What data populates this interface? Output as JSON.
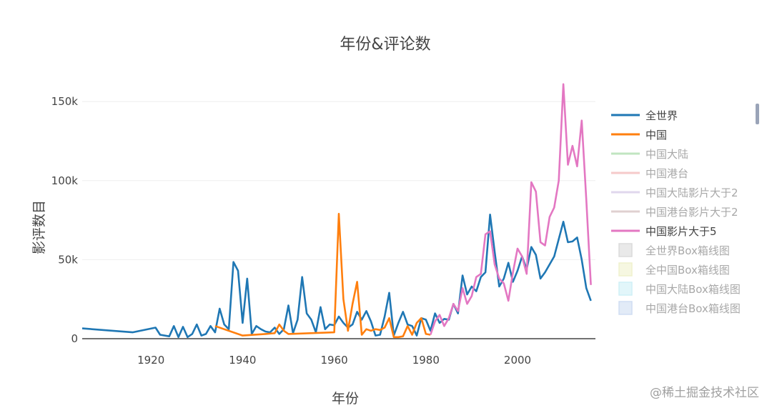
{
  "chart_data": {
    "type": "line",
    "title": "年份&评论数",
    "xlabel": "年份",
    "ylabel": "影评数目",
    "xlim": [
      1905,
      2017
    ],
    "ylim": [
      0,
      160000
    ],
    "x_ticks": [
      1920,
      1940,
      1960,
      1980,
      2000
    ],
    "x_tick_labels": [
      "1920",
      "1940",
      "1960",
      "1980",
      "2000"
    ],
    "y_ticks": [
      0,
      50000,
      100000,
      150000
    ],
    "y_tick_labels": [
      "0",
      "50k",
      "100k",
      "150k"
    ],
    "grid": true,
    "legend_position": "right",
    "series": [
      {
        "name": "全世界",
        "color": "#1f77b4",
        "x": [
          1905,
          1916,
          1921,
          1922,
          1924,
          1925,
          1926,
          1927,
          1928,
          1929,
          1930,
          1931,
          1932,
          1933,
          1934,
          1935,
          1936,
          1937,
          1938,
          1939,
          1940,
          1941,
          1942,
          1943,
          1944,
          1945,
          1946,
          1947,
          1948,
          1949,
          1950,
          1951,
          1952,
          1953,
          1954,
          1955,
          1956,
          1957,
          1958,
          1959,
          1960,
          1961,
          1962,
          1963,
          1964,
          1965,
          1966,
          1967,
          1968,
          1969,
          1970,
          1971,
          1972,
          1973,
          1974,
          1975,
          1976,
          1977,
          1978,
          1979,
          1980,
          1981,
          1982,
          1983,
          1984,
          1985,
          1986,
          1987,
          1988,
          1989,
          1990,
          1991,
          1992,
          1993,
          1994,
          1995,
          1996,
          1997,
          1998,
          1999,
          2000,
          2001,
          2002,
          2003,
          2004,
          2005,
          2006,
          2007,
          2008,
          2009,
          2010,
          2011,
          2012,
          2013,
          2014,
          2015,
          2016
        ],
        "values": [
          6500,
          4000,
          7000,
          2500,
          1500,
          8000,
          1000,
          7500,
          1000,
          3000,
          9000,
          2000,
          3000,
          8000,
          4000,
          19000,
          9000,
          6000,
          48500,
          43000,
          10000,
          38000,
          3000,
          8000,
          6000,
          4500,
          4000,
          7000,
          3000,
          6000,
          21000,
          3500,
          12000,
          39000,
          16000,
          12000,
          4000,
          20000,
          6000,
          9000,
          8500,
          14000,
          10000,
          7000,
          9000,
          17000,
          12000,
          17500,
          11000,
          2000,
          2500,
          14000,
          29000,
          2000,
          10000,
          17000,
          9000,
          8000,
          2000,
          13000,
          12000,
          5000,
          16000,
          10000,
          12500,
          12000,
          22000,
          16000,
          40000,
          28000,
          33000,
          30000,
          39000,
          42000,
          78500,
          55000,
          33000,
          38000,
          48000,
          36000,
          43000,
          52000,
          44000,
          58000,
          53000,
          38000,
          42000,
          47000,
          52000,
          63000,
          74000,
          61000,
          61500,
          64000,
          50000,
          32000,
          24000
        ]
      },
      {
        "name": "中国",
        "color": "#ff7f0e",
        "x": [
          1934,
          1940,
          1945,
          1947,
          1948,
          1949,
          1950,
          1960,
          1961,
          1962,
          1963,
          1964,
          1965,
          1966,
          1967,
          1968,
          1969,
          1970,
          1971,
          1972,
          1973,
          1974,
          1975,
          1976,
          1977,
          1978,
          1979,
          1980,
          1981
        ],
        "values": [
          8000,
          2000,
          3000,
          3500,
          9000,
          5000,
          3000,
          4000,
          79000,
          25000,
          5000,
          22000,
          36000,
          2500,
          6000,
          5000,
          6000,
          5500,
          7000,
          13000,
          1000,
          1000,
          1500,
          8000,
          2500,
          10000,
          13000,
          3000,
          2500
        ]
      },
      {
        "name": "中国大陆",
        "color": "#8fd18f",
        "hidden": true
      },
      {
        "name": "中国港台",
        "color": "#f0a0a0",
        "hidden": true
      },
      {
        "name": "中国大陆影片大于2",
        "color": "#c8b8e0",
        "hidden": true
      },
      {
        "name": "中国港台影片大于2",
        "color": "#c8aaaa",
        "hidden": true
      },
      {
        "name": "中国影片大于5",
        "color": "#e377c2",
        "x": [
          1981,
          1982,
          1983,
          1984,
          1985,
          1986,
          1987,
          1988,
          1989,
          1990,
          1991,
          1992,
          1993,
          1994,
          1995,
          1996,
          1997,
          1998,
          1999,
          2000,
          2001,
          2002,
          2003,
          2004,
          2005,
          2006,
          2007,
          2008,
          2009,
          2010,
          2011,
          2012,
          2013,
          2014,
          2015,
          2016
        ],
        "values": [
          2500,
          11000,
          15000,
          8000,
          13000,
          22000,
          17500,
          32000,
          22000,
          27000,
          39000,
          41000,
          66000,
          68000,
          47000,
          38000,
          35000,
          24000,
          42000,
          57000,
          52000,
          41000,
          99000,
          93000,
          61000,
          59000,
          77000,
          83000,
          100000,
          161000,
          110000,
          122000,
          109000,
          138000,
          88000,
          34000
        ]
      },
      {
        "name": "全世界Box箱线图",
        "color": "#bdbdbd",
        "hidden": true,
        "legend_symbol": "box"
      },
      {
        "name": "全中国Box箱线图",
        "color": "#e3e7a5",
        "hidden": true,
        "legend_symbol": "box"
      },
      {
        "name": "中国大陆Box箱线图",
        "color": "#a8e4f0",
        "hidden": true,
        "legend_symbol": "box"
      },
      {
        "name": "中国港台Box箱线图",
        "color": "#a9c3e8",
        "hidden": true,
        "legend_symbol": "box"
      }
    ]
  },
  "watermark": "@稀土掘金技术社区"
}
